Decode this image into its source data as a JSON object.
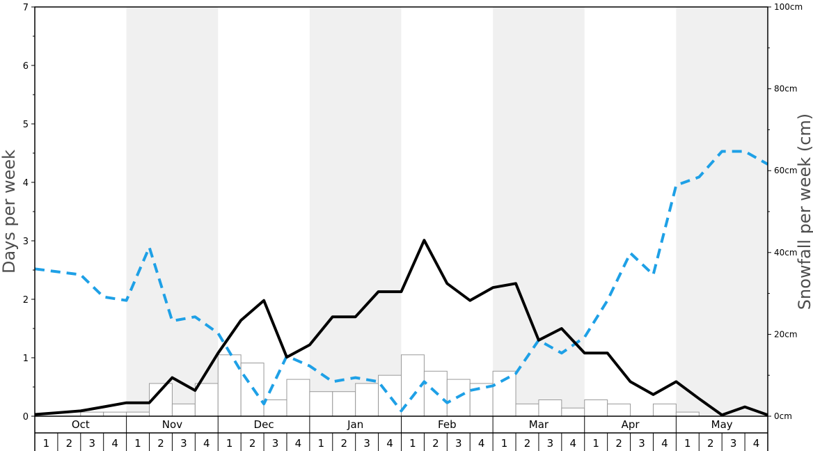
{
  "chart_data": {
    "type": "bar",
    "ylabel": "Days per week",
    "y2label": "Snowfall per week (cm)",
    "ylim": [
      0,
      7
    ],
    "y2lim": [
      0,
      100
    ],
    "yticks": [
      "0",
      "1",
      "2",
      "3",
      "4",
      "5",
      "6",
      "7"
    ],
    "y2ticks": [
      "0cm",
      "20cm",
      "40cm",
      "60cm",
      "80cm",
      "100cm"
    ],
    "months": [
      "Oct",
      "Nov",
      "Dec",
      "Jan",
      "Feb",
      "Mar",
      "Apr",
      "May"
    ],
    "weeks": [
      "1",
      "2",
      "3",
      "4"
    ],
    "colors": {
      "snowfall_bars": "#ffffff",
      "bar_edge": "#999999",
      "snow_days_line": "#000000",
      "sun_days_line": "#1ea0e6",
      "shade": "#f0f0f0"
    },
    "snowfall_cm": [
      0,
      0,
      1,
      1,
      1,
      8,
      3,
      8,
      15,
      13,
      4,
      9,
      6,
      6,
      8,
      10,
      15,
      11,
      9,
      8,
      11,
      3,
      4,
      2,
      4,
      3,
      0,
      3,
      1,
      0,
      0,
      0
    ],
    "snow_days": [
      0.03,
      0.06,
      0.09,
      0.16,
      0.23,
      0.23,
      0.66,
      0.44,
      1.08,
      1.64,
      1.98,
      1.01,
      1.22,
      1.7,
      1.7,
      2.13,
      2.13,
      3.01,
      2.27,
      1.98,
      2.2,
      2.27,
      1.3,
      1.5,
      1.08,
      1.08,
      0.59,
      0.37,
      0.59,
      0.3,
      0.02,
      0.16,
      0.02
    ],
    "sun_days": [
      2.52,
      2.47,
      2.42,
      2.04,
      1.98,
      2.89,
      1.63,
      1.7,
      1.42,
      0.77,
      0.21,
      1.03,
      0.86,
      0.59,
      0.66,
      0.59,
      0.09,
      0.59,
      0.23,
      0.44,
      0.52,
      0.73,
      1.3,
      1.08,
      1.35,
      1.98,
      2.79,
      2.42,
      3.95,
      4.09,
      4.53,
      4.53,
      4.31
    ]
  }
}
